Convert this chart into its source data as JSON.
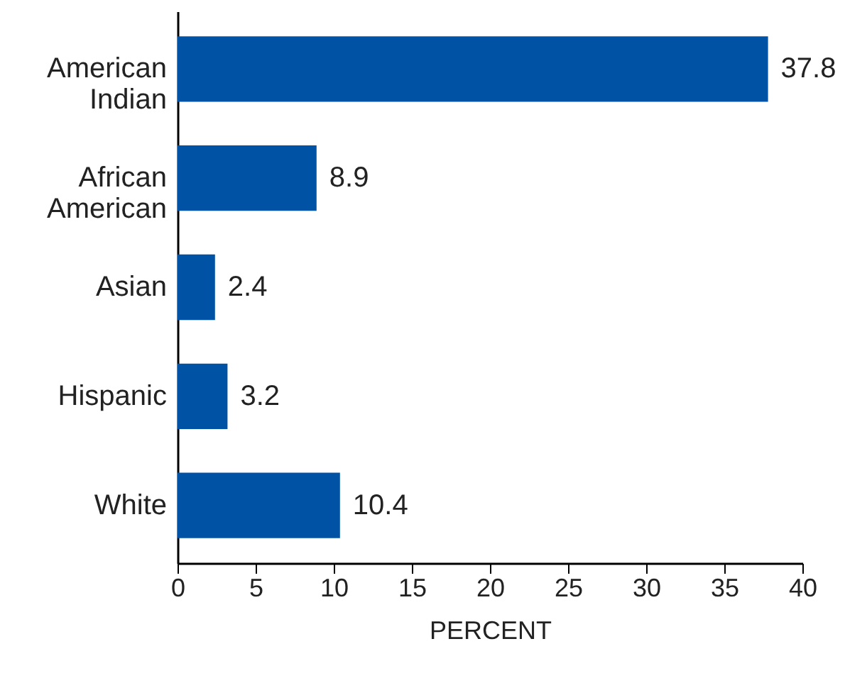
{
  "chart_data": {
    "type": "bar",
    "orientation": "horizontal",
    "xlabel": "PERCENT",
    "categories": [
      "American Indian",
      "African American",
      "Asian",
      "Hispanic",
      "White"
    ],
    "values": [
      37.8,
      8.9,
      2.4,
      3.2,
      10.4
    ],
    "color": "#0052a5",
    "xlim": [
      0,
      40
    ],
    "xticks": [
      0,
      5,
      10,
      15,
      20,
      25,
      30,
      35,
      40
    ],
    "grid": false,
    "data_labels": true
  }
}
